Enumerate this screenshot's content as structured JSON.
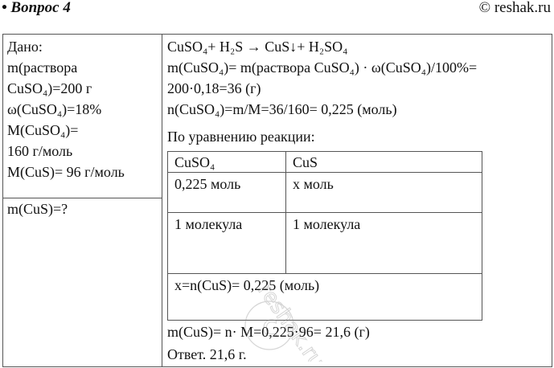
{
  "header": {
    "question": "• Вопрос 4",
    "copyright": "© reshak.ru"
  },
  "given": {
    "lines": [
      "Дано:",
      "m(раствора",
      "CuSO₄)=200 г",
      "ω(CuSO₄)=18%",
      "M(CuSO₄)=",
      "160 г/моль",
      "M(CuS)= 96 г/моль"
    ],
    "find": "m(CuS)=?"
  },
  "solution": {
    "lines": [
      "CuSO₄+ H₂S → CuS↓+ H₂SO₄",
      "m(CuSO₄)= m(раствора CuSO₄) · ω(CuSO₄)/100%=",
      "200·0,18=36 (г)",
      "n(CuSO₄)=m/M=36/160= 0,225 (моль)",
      "По уравнению реакции:"
    ],
    "table": {
      "headers": [
        "CuSO₄",
        "CuS"
      ],
      "rows": [
        [
          "0,225 моль",
          "x моль"
        ],
        [
          "1 молекула",
          "1 молекула"
        ]
      ],
      "result": "x=n(CuS)= 0,225 (моль)"
    },
    "after": [
      "m(CuS)= n· M=0,225·96= 21,6 (г)",
      "Ответ. 21,6 г."
    ]
  },
  "watermark": "reshak.ru"
}
